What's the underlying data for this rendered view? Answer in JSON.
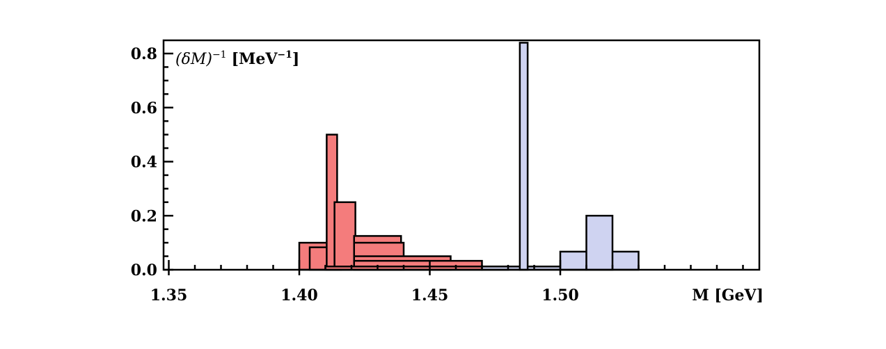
{
  "chart_data": {
    "type": "bar",
    "annotation": "(δM)",
    "annotation_sup": "−1",
    "annotation_unit": "[MeV",
    "annotation_unit_sup": "−1",
    "annotation_unit_close": "]",
    "xlabel": "M [GeV]",
    "ylabel": "",
    "xlim": [
      1.35,
      1.51
    ],
    "ylim": [
      0,
      0.85
    ],
    "x_ticks": [
      {
        "value": 1.35,
        "label": "1.35"
      },
      {
        "value": 1.4,
        "label": "1.40"
      },
      {
        "value": 1.45,
        "label": "1.45"
      },
      {
        "value": 1.5,
        "label": "1.50"
      }
    ],
    "y_ticks": [
      {
        "value": 0.0,
        "label": "0.0"
      },
      {
        "value": 0.2,
        "label": "0.2"
      },
      {
        "value": 0.4,
        "label": "0.4"
      },
      {
        "value": 0.6,
        "label": "0.6"
      },
      {
        "value": 0.8,
        "label": "0.8"
      }
    ],
    "x_minor_step": 0.01,
    "y_minor_step": 0.05,
    "colors": {
      "red": "#f47c7c",
      "blue": "#cfd3f1",
      "stroke": "#000000"
    },
    "bars": [
      {
        "group": "red",
        "x_start": 1.4,
        "x_end": 1.42,
        "value": 0.1
      },
      {
        "group": "red",
        "x_start": 1.404,
        "x_end": 1.416,
        "value": 0.083
      },
      {
        "group": "red",
        "x_start": 1.4105,
        "x_end": 1.4145,
        "value": 0.5
      },
      {
        "group": "red",
        "x_start": 1.4135,
        "x_end": 1.4215,
        "value": 0.25
      },
      {
        "group": "red",
        "x_start": 1.421,
        "x_end": 1.439,
        "value": 0.125
      },
      {
        "group": "red",
        "x_start": 1.421,
        "x_end": 1.44,
        "value": 0.1
      },
      {
        "group": "red",
        "x_start": 1.421,
        "x_end": 1.458,
        "value": 0.05
      },
      {
        "group": "red",
        "x_start": 1.421,
        "x_end": 1.47,
        "value": 0.033
      },
      {
        "group": "red",
        "x_start": 1.41,
        "x_end": 1.48,
        "value": 0.012
      },
      {
        "group": "blue",
        "x_start": 1.47,
        "x_end": 1.51,
        "value": 0.012
      },
      {
        "group": "blue",
        "x_start": 1.5,
        "x_end": 1.53,
        "value": 0.067
      },
      {
        "group": "blue",
        "x_start": 1.51,
        "x_end": 1.52,
        "value": 0.2
      },
      {
        "group": "blue",
        "x_start": 1.4845,
        "x_end": 1.4875,
        "value": 0.84
      }
    ]
  }
}
